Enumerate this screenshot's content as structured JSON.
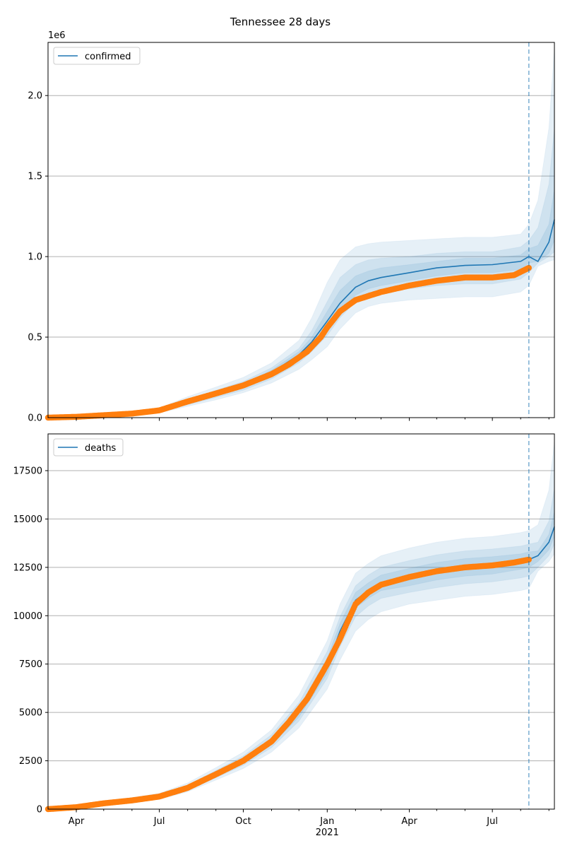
{
  "chart_data": {
    "type": "line",
    "title": "Tennessee 28 days",
    "forecast_start": "2021-08-10",
    "colors": {
      "model": "#1f77b4",
      "observed": "#ff7f0e",
      "band": "#1f77b4",
      "grid": "#b0b0b0"
    },
    "x_axis": {
      "range": [
        "2020-03-01",
        "2021-09-07"
      ],
      "ticks": [
        {
          "date": "2020-04-01",
          "label": "Apr"
        },
        {
          "date": "2020-07-01",
          "label": "Jul"
        },
        {
          "date": "2020-10-01",
          "label": "Oct"
        },
        {
          "date": "2021-01-01",
          "label": "Jan"
        },
        {
          "date": "2021-04-01",
          "label": "Apr"
        },
        {
          "date": "2021-07-01",
          "label": "Jul"
        }
      ],
      "minor_ticks": [
        "2020-05-01",
        "2020-06-01",
        "2020-08-01",
        "2020-09-01",
        "2020-11-01",
        "2020-12-01",
        "2021-02-01",
        "2021-03-01",
        "2021-05-01",
        "2021-06-01",
        "2021-08-01",
        "2021-09-01"
      ],
      "year_label": "2021"
    },
    "panels": [
      {
        "legend": "confirmed",
        "legend_position": "upper-left",
        "multiplier_label": "1e6",
        "ylim": [
          0,
          2.33
        ],
        "yticks": [
          0,
          0.5,
          1.0,
          1.5,
          2.0
        ],
        "ytick_labels": [
          "0.0",
          "0.5",
          "1.0",
          "1.5",
          "2.0"
        ],
        "grid": true,
        "observed": {
          "x": [
            "2020-03-01",
            "2020-04-01",
            "2020-05-01",
            "2020-06-01",
            "2020-07-01",
            "2020-08-01",
            "2020-09-01",
            "2020-10-01",
            "2020-11-01",
            "2020-11-20",
            "2020-12-10",
            "2020-12-25",
            "2021-01-01",
            "2021-01-15",
            "2021-02-01",
            "2021-03-01",
            "2021-04-01",
            "2021-05-01",
            "2021-06-01",
            "2021-07-01",
            "2021-07-25",
            "2021-08-10"
          ],
          "y": [
            0.0,
            0.005,
            0.015,
            0.025,
            0.045,
            0.1,
            0.15,
            0.2,
            0.27,
            0.33,
            0.41,
            0.5,
            0.56,
            0.66,
            0.73,
            0.78,
            0.82,
            0.85,
            0.87,
            0.87,
            0.885,
            0.93
          ]
        },
        "model": {
          "x": [
            "2020-03-01",
            "2020-04-01",
            "2020-05-01",
            "2020-06-01",
            "2020-07-01",
            "2020-08-01",
            "2020-09-01",
            "2020-10-01",
            "2020-11-01",
            "2020-12-01",
            "2020-12-15",
            "2021-01-01",
            "2021-01-15",
            "2021-02-01",
            "2021-02-15",
            "2021-03-01",
            "2021-04-01",
            "2021-05-01",
            "2021-06-01",
            "2021-07-01",
            "2021-08-01",
            "2021-08-10",
            "2021-08-20",
            "2021-09-01",
            "2021-09-07"
          ],
          "y": [
            0.0,
            0.005,
            0.015,
            0.025,
            0.045,
            0.1,
            0.15,
            0.2,
            0.28,
            0.39,
            0.47,
            0.6,
            0.71,
            0.81,
            0.85,
            0.87,
            0.9,
            0.93,
            0.945,
            0.95,
            0.97,
            1.0,
            0.97,
            1.09,
            1.23
          ]
        },
        "bands": [
          {
            "upper": [
              0.003,
              0.012,
              0.025,
              0.04,
              0.06,
              0.13,
              0.19,
              0.25,
              0.34,
              0.48,
              0.62,
              0.84,
              0.98,
              1.06,
              1.08,
              1.09,
              1.1,
              1.11,
              1.12,
              1.12,
              1.14,
              1.2,
              1.35,
              1.8,
              2.3
            ],
            "lower": [
              0.0,
              0.0,
              0.005,
              0.012,
              0.03,
              0.07,
              0.11,
              0.155,
              0.215,
              0.3,
              0.36,
              0.44,
              0.55,
              0.65,
              0.69,
              0.71,
              0.73,
              0.74,
              0.75,
              0.75,
              0.78,
              0.82,
              0.94,
              0.97,
              0.98
            ]
          },
          {
            "upper": [
              0.002,
              0.009,
              0.02,
              0.033,
              0.053,
              0.115,
              0.17,
              0.225,
              0.31,
              0.43,
              0.54,
              0.72,
              0.87,
              0.95,
              0.98,
              0.99,
              1.0,
              1.02,
              1.03,
              1.03,
              1.06,
              1.1,
              1.18,
              1.45,
              1.8
            ],
            "lower": [
              0.0,
              0.002,
              0.008,
              0.017,
              0.036,
              0.08,
              0.125,
              0.17,
              0.24,
              0.34,
              0.41,
              0.51,
              0.62,
              0.72,
              0.76,
              0.78,
              0.8,
              0.82,
              0.83,
              0.83,
              0.86,
              0.9,
              0.96,
              1.0,
              1.03
            ]
          },
          {
            "upper": [
              0.001,
              0.007,
              0.018,
              0.029,
              0.049,
              0.107,
              0.16,
              0.212,
              0.295,
              0.41,
              0.5,
              0.66,
              0.79,
              0.88,
              0.91,
              0.93,
              0.95,
              0.97,
              0.99,
              0.99,
              1.01,
              1.05,
              1.07,
              1.2,
              1.42
            ],
            "lower": [
              0.0,
              0.003,
              0.011,
              0.021,
              0.041,
              0.092,
              0.14,
              0.188,
              0.265,
              0.37,
              0.44,
              0.55,
              0.66,
              0.76,
              0.8,
              0.82,
              0.85,
              0.88,
              0.9,
              0.9,
              0.92,
              0.96,
              0.97,
              1.02,
              1.1
            ]
          }
        ]
      },
      {
        "legend": "deaths",
        "legend_position": "upper-left",
        "multiplier_label": "",
        "ylim": [
          0,
          19400
        ],
        "yticks": [
          0,
          2500,
          5000,
          7500,
          10000,
          12500,
          15000,
          17500
        ],
        "ytick_labels": [
          "0",
          "2500",
          "5000",
          "7500",
          "10000",
          "12500",
          "15000",
          "17500"
        ],
        "grid": true,
        "observed": {
          "x": [
            "2020-03-01",
            "2020-04-01",
            "2020-05-01",
            "2020-06-01",
            "2020-07-01",
            "2020-08-01",
            "2020-09-01",
            "2020-10-01",
            "2020-11-01",
            "2020-11-20",
            "2020-12-10",
            "2021-01-01",
            "2021-01-15",
            "2021-02-01",
            "2021-02-15",
            "2021-03-01",
            "2021-04-01",
            "2021-05-01",
            "2021-06-01",
            "2021-07-01",
            "2021-07-25",
            "2021-08-10"
          ],
          "y": [
            0,
            100,
            300,
            450,
            650,
            1100,
            1800,
            2500,
            3500,
            4500,
            5700,
            7500,
            8800,
            10600,
            11200,
            11600,
            12000,
            12300,
            12500,
            12600,
            12750,
            12900
          ]
        },
        "model": {
          "x": [
            "2020-03-01",
            "2020-04-01",
            "2020-05-01",
            "2020-06-01",
            "2020-07-01",
            "2020-08-01",
            "2020-09-01",
            "2020-10-01",
            "2020-11-01",
            "2020-12-01",
            "2021-01-01",
            "2021-01-15",
            "2021-02-01",
            "2021-02-15",
            "2021-03-01",
            "2021-04-01",
            "2021-05-01",
            "2021-06-01",
            "2021-07-01",
            "2021-08-01",
            "2021-08-10",
            "2021-08-20",
            "2021-09-01",
            "2021-09-07"
          ],
          "y": [
            0,
            100,
            300,
            450,
            650,
            1100,
            1800,
            2500,
            3500,
            5000,
            7400,
            9200,
            10800,
            11300,
            11700,
            12000,
            12300,
            12500,
            12600,
            12800,
            12900,
            13100,
            13800,
            14600
          ]
        },
        "bands": [
          {
            "upper": [
              30,
              180,
              420,
              600,
              820,
              1350,
              2150,
              2950,
              4100,
              5900,
              8700,
              10600,
              12200,
              12700,
              13100,
              13500,
              13800,
              14000,
              14100,
              14300,
              14400,
              14700,
              16500,
              19000
            ],
            "lower": [
              0,
              40,
              200,
              330,
              500,
              900,
              1500,
              2100,
              2950,
              4200,
              6200,
              7700,
              9200,
              9800,
              10200,
              10600,
              10800,
              11000,
              11100,
              11300,
              11400,
              12300,
              12800,
              13200
            ]
          },
          {
            "upper": [
              15,
              140,
              370,
              540,
              750,
              1250,
              2000,
              2750,
              3850,
              5500,
              8150,
              9950,
              11550,
              12100,
              12500,
              12850,
              13150,
              13350,
              13450,
              13600,
              13700,
              13800,
              14900,
              16600
            ],
            "lower": [
              0,
              60,
              240,
              370,
              560,
              970,
              1620,
              2270,
              3180,
              4550,
              6750,
              8400,
              9950,
              10500,
              10900,
              11200,
              11450,
              11650,
              11750,
              11950,
              12050,
              12500,
              13100,
              13700
            ]
          },
          {
            "upper": [
              8,
              120,
              340,
              500,
              710,
              1180,
              1900,
              2630,
              3680,
              5250,
              7800,
              9600,
              11200,
              11700,
              12100,
              12450,
              12750,
              12950,
              13050,
              13200,
              13300,
              13350,
              14200,
              15400
            ],
            "lower": [
              0,
              80,
              265,
              410,
              595,
              1030,
              1700,
              2380,
              3320,
              4760,
              7000,
              8800,
              10400,
              10900,
              11300,
              11550,
              11850,
              12050,
              12150,
              12400,
              12500,
              12800,
              13400,
              14100
            ]
          }
        ]
      }
    ]
  }
}
